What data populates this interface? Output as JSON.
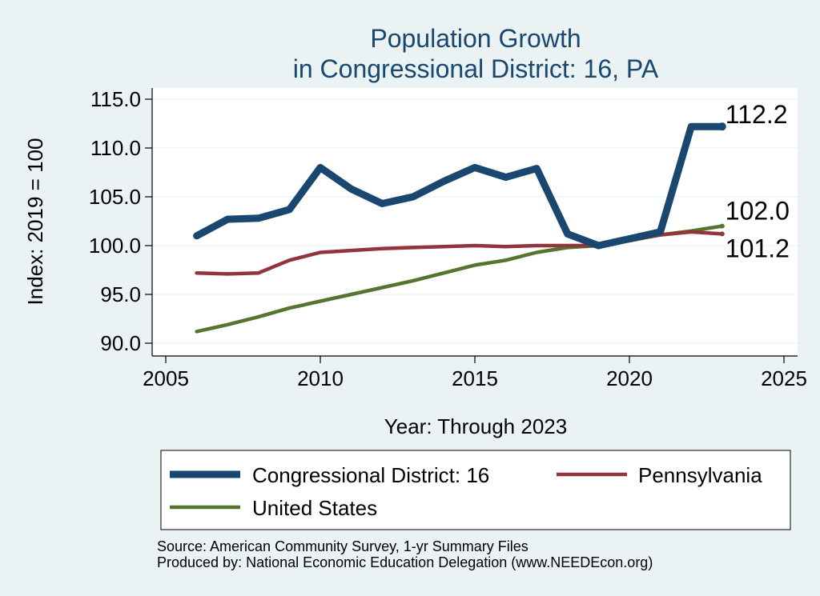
{
  "chart_data": {
    "type": "line",
    "title": [
      "Population Growth",
      "in Congressional District: 16, PA"
    ],
    "xlabel": "Year: Through 2023",
    "ylabel": "Index: 2019 = 100",
    "xlim": [
      2005,
      2025
    ],
    "ylim": [
      90,
      115
    ],
    "xticks": [
      2005,
      2010,
      2015,
      2020,
      2025
    ],
    "yticks": [
      90,
      95,
      100,
      105,
      110,
      115
    ],
    "ytick_labels": [
      "90.0",
      "95.0",
      "100.0",
      "105.0",
      "110.0",
      "115.0"
    ],
    "grid": true,
    "legend_position": "bottom",
    "x": [
      2006,
      2007,
      2008,
      2009,
      2010,
      2011,
      2012,
      2013,
      2014,
      2015,
      2016,
      2017,
      2018,
      2019,
      2020,
      2021,
      2022,
      2023
    ],
    "series": [
      {
        "name": "Congressional District: 16",
        "color": "#1a476f",
        "values": [
          101.0,
          102.7,
          102.8,
          103.7,
          108.0,
          105.8,
          104.3,
          105.0,
          106.6,
          108.0,
          107.0,
          107.9,
          101.2,
          100.0,
          100.7,
          101.4,
          112.2,
          112.2
        ],
        "end_label": "112.2"
      },
      {
        "name": "Pennsylvania",
        "color": "#90353b",
        "values": [
          97.2,
          97.1,
          97.2,
          98.5,
          99.3,
          99.5,
          99.7,
          99.8,
          99.9,
          100.0,
          99.9,
          100.0,
          100.0,
          100.0,
          100.6,
          101.1,
          101.4,
          101.2
        ],
        "end_label": "101.2"
      },
      {
        "name": "United States",
        "color": "#55752f",
        "values": [
          91.2,
          91.9,
          92.7,
          93.6,
          94.3,
          95.0,
          95.7,
          96.4,
          97.2,
          98.0,
          98.5,
          99.3,
          99.8,
          100.0,
          100.5,
          101.1,
          101.5,
          102.0
        ],
        "end_label": "102.0"
      }
    ],
    "notes": [
      "Source: American Community Survey, 1-yr Summary Files",
      "Produced by: National Economic Education Delegation (www.NEEDEcon.org)"
    ]
  }
}
